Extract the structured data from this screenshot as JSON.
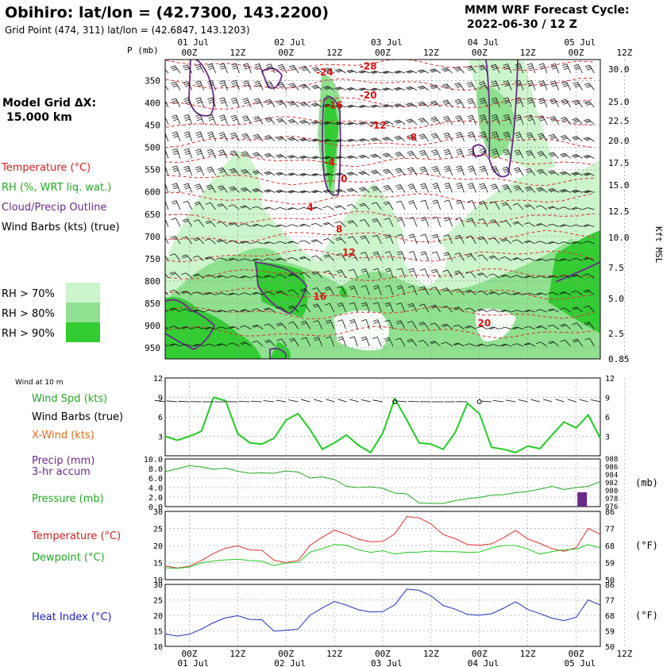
{
  "header": {
    "title": "Obihiro:  lat/lon = (42.7300, 143.2200)",
    "grid_point": "Grid Point (474, 311) lat/lon = (42.6847, 143.1203)",
    "forecast_title": "MMM WRF Forecast Cycle:",
    "forecast_cycle": "2022-06-30 / 12  Z"
  },
  "time_axis": {
    "hours": [
      "00Z",
      "12Z",
      "00Z",
      "12Z",
      "00Z",
      "12Z",
      "00Z",
      "12Z",
      "00Z",
      "12Z"
    ],
    "days": [
      "01 Jul",
      "02 Jul",
      "03 Jul",
      "04 Jul",
      "05 Jul"
    ]
  },
  "left_panel": {
    "p_label": "P (mb)",
    "model_grid": "Model Grid ΔX:",
    "model_grid_value": "15.000 km",
    "legend": [
      {
        "text": "Temperature (°C)",
        "color": "#d42020"
      },
      {
        "text": "RH (%, WRT liq. wat.)",
        "color": "#22aa22"
      },
      {
        "text": "Cloud/Precip Outline",
        "color": "#6a2a8a"
      },
      {
        "text": "Wind Barbs (kts) (true)",
        "color": "#000000"
      }
    ],
    "rh_legend": [
      {
        "text": "RH > 70%",
        "color": "#ccf5cc"
      },
      {
        "text": "RH > 80%",
        "color": "#8fe08f"
      },
      {
        "text": "RH > 90%",
        "color": "#33cc33"
      }
    ]
  },
  "chart_data": [
    {
      "type": "heatmap",
      "name": "cross-section",
      "y_left_ticks": [
        350,
        400,
        450,
        500,
        550,
        600,
        650,
        700,
        750,
        800,
        850,
        900,
        950
      ],
      "y_right_ticks": [
        "30.0",
        "25.0",
        "22.5",
        "20.0",
        "17.5",
        "15.0",
        "12.5",
        "10.0",
        "7.5",
        "5.0",
        "2.5",
        "0.85"
      ],
      "y_right_label": "Kft MSL",
      "temperature_labels": [
        {
          "text": "-28",
          "t": 2.1,
          "p": 325
        },
        {
          "text": "-24",
          "t": 1.65,
          "p": 338
        },
        {
          "text": "-20",
          "t": 2.1,
          "p": 390
        },
        {
          "text": "-16",
          "t": 1.75,
          "p": 412
        },
        {
          "text": "-12",
          "t": 2.2,
          "p": 458
        },
        {
          "text": "-8",
          "t": 2.55,
          "p": 485
        },
        {
          "text": "-4",
          "t": 1.7,
          "p": 541
        },
        {
          "text": "0",
          "t": 1.85,
          "p": 578
        },
        {
          "text": "4",
          "t": 1.5,
          "p": 642
        },
        {
          "text": "8",
          "t": 1.8,
          "p": 691
        },
        {
          "text": "12",
          "t": 1.9,
          "p": 743
        },
        {
          "text": "16",
          "t": 1.6,
          "p": 842
        },
        {
          "text": "20",
          "t": 3.3,
          "p": 902
        }
      ],
      "grid": true
    },
    {
      "type": "line",
      "name": "wind",
      "title": "Wind at 10 m",
      "labels": [
        {
          "text": "Wind Spd (kts)",
          "color": "#22aa22"
        },
        {
          "text": "Wind Barbs (true)",
          "color": "#000000"
        },
        {
          "text": "X-Wind (kts)",
          "color": "#e06a1a"
        }
      ],
      "y_ticks": [
        3,
        6,
        9,
        12
      ],
      "ylim": [
        0,
        12
      ],
      "series": [
        {
          "name": "Wind Spd (kts)",
          "color": "#22cc22",
          "x": [
            0,
            0.125,
            0.25,
            0.375,
            0.5,
            0.625,
            0.75,
            0.875,
            1.0,
            1.125,
            1.25,
            1.375,
            1.5,
            1.625,
            1.75,
            1.875,
            2.0,
            2.125,
            2.25,
            2.375,
            2.5,
            2.625,
            2.75,
            2.875,
            3.0,
            3.125,
            3.25,
            3.375,
            3.5,
            3.625,
            3.75,
            3.875,
            4.0,
            4.125,
            4.25,
            4.375,
            4.5
          ],
          "y": [
            3.0,
            2.4,
            3.0,
            3.8,
            9.0,
            8.5,
            3.4,
            2.0,
            1.8,
            2.7,
            5.5,
            6.5,
            4.0,
            1.0,
            2.0,
            3.2,
            1.6,
            0.5,
            3.5,
            8.8,
            5.5,
            2.0,
            1.8,
            1.0,
            3.6,
            8.1,
            6.5,
            1.3,
            1.0,
            0.5,
            1.5,
            1.1,
            3.2,
            5.2,
            4.3,
            6.3,
            2.7
          ]
        }
      ]
    },
    {
      "type": "line",
      "name": "precip-pressure",
      "labels": [
        {
          "text": "Precip (mm)",
          "color": "#6a2a8a"
        },
        {
          "text": "3-hr accum",
          "color": "#6a2a8a"
        },
        {
          "text": "Pressure (mb)",
          "color": "#22aa22"
        }
      ],
      "y_left_ticks": [
        "0.0",
        "2.0",
        "4.0",
        "6.0",
        "8.0",
        "10.0"
      ],
      "y_right_ticks": [
        976,
        978,
        980,
        982,
        984,
        986,
        988
      ],
      "y_right_unit": "(mb)",
      "ylim_left": [
        0,
        10
      ],
      "ylim_right": [
        976,
        988
      ],
      "series": [
        {
          "name": "Pressure (mb)",
          "color": "#22aa22",
          "x": [
            0,
            0.125,
            0.25,
            0.375,
            0.5,
            0.625,
            0.75,
            0.875,
            1.0,
            1.125,
            1.25,
            1.375,
            1.5,
            1.625,
            1.75,
            1.875,
            2.0,
            2.125,
            2.25,
            2.375,
            2.5,
            2.625,
            2.75,
            2.875,
            3.0,
            3.125,
            3.25,
            3.375,
            3.5,
            3.625,
            3.75,
            3.875,
            4.0,
            4.125,
            4.25,
            4.375,
            4.5
          ],
          "y": [
            984.8,
            985.5,
            986.3,
            986.0,
            985.4,
            985.7,
            984.9,
            984.4,
            984.5,
            984.4,
            985.0,
            984.7,
            983.2,
            983.5,
            982.8,
            981.1,
            980.8,
            981.0,
            980.6,
            979.4,
            979.2,
            976.9,
            976.8,
            976.8,
            977.5,
            978.0,
            978.3,
            978.9,
            979.0,
            979.5,
            979.8,
            980.4,
            981.1,
            980.3,
            980.8,
            981.1,
            982.3
          ]
        },
        {
          "name": "Precip (mm)",
          "type": "bar",
          "color": "#6a2a8a",
          "x": [
            4.3125
          ],
          "y": [
            3.0
          ]
        }
      ]
    },
    {
      "type": "line",
      "name": "temp-dewpoint",
      "labels": [
        {
          "text": "Temperature (°C)",
          "color": "#d42020"
        },
        {
          "text": "Dewpoint (°C)",
          "color": "#22aa22"
        }
      ],
      "y_left_ticks": [
        10,
        15,
        20,
        25,
        30
      ],
      "y_right_ticks": [
        50,
        59,
        68,
        77,
        86
      ],
      "y_right_unit": "(°F)",
      "ylim": [
        10,
        30
      ],
      "series": [
        {
          "name": "Temperature (°C)",
          "color": "#e03030",
          "x": [
            0,
            0.125,
            0.25,
            0.375,
            0.5,
            0.625,
            0.75,
            0.875,
            1.0,
            1.125,
            1.25,
            1.375,
            1.5,
            1.625,
            1.75,
            1.875,
            2.0,
            2.125,
            2.25,
            2.375,
            2.5,
            2.625,
            2.75,
            2.875,
            3.0,
            3.125,
            3.25,
            3.375,
            3.5,
            3.625,
            3.75,
            3.875,
            4.0,
            4.125,
            4.25,
            4.375,
            4.5
          ],
          "y": [
            14.0,
            13.4,
            13.9,
            15.6,
            17.7,
            19.2,
            19.9,
            18.7,
            18.6,
            15.7,
            15.0,
            15.6,
            20.1,
            22.4,
            24.5,
            23.3,
            21.8,
            21.1,
            21.2,
            23.4,
            28.5,
            28.1,
            26.3,
            23.2,
            22.0,
            20.3,
            20.1,
            20.5,
            22.3,
            24.4,
            21.9,
            20.6,
            19.1,
            18.3,
            19.4,
            25.0,
            23.3
          ]
        },
        {
          "name": "Dewpoint (°C)",
          "color": "#22cc22",
          "x": [
            0,
            0.125,
            0.25,
            0.375,
            0.5,
            0.625,
            0.75,
            0.875,
            1.0,
            1.125,
            1.25,
            1.375,
            1.5,
            1.625,
            1.75,
            1.875,
            2.0,
            2.125,
            2.25,
            2.375,
            2.5,
            2.625,
            2.75,
            2.875,
            3.0,
            3.125,
            3.25,
            3.375,
            3.5,
            3.625,
            3.75,
            3.875,
            4.0,
            4.125,
            4.25,
            4.375,
            4.5
          ],
          "y": [
            13.5,
            13.3,
            13.7,
            14.9,
            15.5,
            15.8,
            16.0,
            15.6,
            15.4,
            14.1,
            14.9,
            15.0,
            18.1,
            19.1,
            20.3,
            20.1,
            18.7,
            18.0,
            18.5,
            17.5,
            18.0,
            18.1,
            18.4,
            18.2,
            18.2,
            18.0,
            18.1,
            19.3,
            20.0,
            20.0,
            19.0,
            17.5,
            18.2,
            18.8,
            18.9,
            20.3,
            19.2
          ]
        }
      ]
    },
    {
      "type": "line",
      "name": "heat-index",
      "labels": [
        {
          "text": "Heat Index (°C)",
          "color": "#2020bb"
        }
      ],
      "y_left_ticks": [
        10,
        15,
        20,
        25,
        30
      ],
      "y_right_ticks": [
        50,
        59,
        68,
        77,
        86
      ],
      "y_right_unit": "(°F)",
      "ylim": [
        10,
        30
      ],
      "series": [
        {
          "name": "Heat Index (°C)",
          "color": "#2030bb",
          "x": [
            0,
            0.125,
            0.25,
            0.375,
            0.5,
            0.625,
            0.75,
            0.875,
            1.0,
            1.125,
            1.25,
            1.375,
            1.5,
            1.625,
            1.75,
            1.875,
            2.0,
            2.125,
            2.25,
            2.375,
            2.5,
            2.625,
            2.75,
            2.875,
            3.0,
            3.125,
            3.25,
            3.375,
            3.5,
            3.625,
            3.75,
            3.875,
            4.0,
            4.125,
            4.25,
            4.375,
            4.5
          ],
          "y": [
            14.0,
            13.3,
            13.9,
            15.6,
            17.7,
            19.2,
            19.9,
            18.7,
            18.6,
            14.9,
            15.2,
            15.6,
            20.1,
            22.4,
            24.5,
            23.3,
            21.8,
            21.1,
            21.2,
            23.4,
            28.5,
            28.1,
            26.3,
            23.2,
            22.0,
            20.3,
            20.1,
            20.5,
            22.3,
            24.4,
            21.9,
            20.6,
            19.1,
            18.3,
            19.4,
            25.0,
            23.3
          ]
        }
      ]
    }
  ]
}
